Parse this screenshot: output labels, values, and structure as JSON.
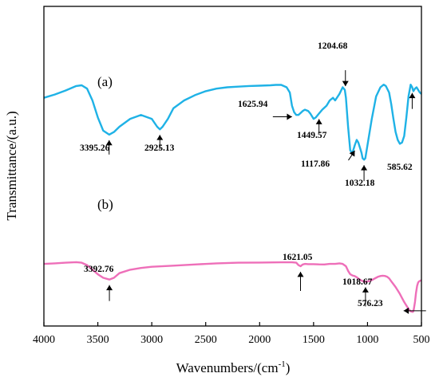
{
  "chart_data": {
    "type": "line",
    "xlabel": "Wavenumbers/(cm-1)",
    "xlabel_main": "Wavenumbers/(cm",
    "xlabel_sup": "-1",
    "xlabel_close": ")",
    "ylabel": "Transmittance/(a.u.)",
    "xlim": [
      4000,
      500
    ],
    "x_reversed": true,
    "y_ticks_shown": false,
    "grid": false,
    "x_ticks": [
      "4000",
      "3500",
      "3000",
      "2500",
      "2000",
      "1500",
      "1000",
      "500"
    ],
    "series": [
      {
        "name": "(a)",
        "color": "#1fb2e6",
        "x": [
          4000,
          3900,
          3800,
          3700,
          3650,
          3600,
          3550,
          3500,
          3450,
          3395,
          3350,
          3300,
          3200,
          3100,
          3000,
          2950,
          2925,
          2900,
          2850,
          2800,
          2700,
          2600,
          2500,
          2400,
          2300,
          2200,
          2100,
          2000,
          1900,
          1850,
          1800,
          1750,
          1720,
          1700,
          1680,
          1660,
          1640,
          1626,
          1600,
          1580,
          1550,
          1530,
          1500,
          1480,
          1450,
          1420,
          1380,
          1350,
          1320,
          1300,
          1260,
          1230,
          1210,
          1200,
          1180,
          1160,
          1140,
          1118,
          1100,
          1085,
          1070,
          1055,
          1045,
          1032,
          1020,
          1000,
          960,
          920,
          880,
          850,
          830,
          800,
          780,
          760,
          740,
          720,
          700,
          680,
          660,
          640,
          620,
          600,
          586,
          575,
          560,
          545,
          530,
          515,
          500
        ],
        "values": [
          0.62,
          0.645,
          0.675,
          0.71,
          0.715,
          0.69,
          0.6,
          0.47,
          0.37,
          0.34,
          0.36,
          0.4,
          0.46,
          0.49,
          0.46,
          0.4,
          0.38,
          0.4,
          0.46,
          0.54,
          0.6,
          0.64,
          0.67,
          0.69,
          0.7,
          0.705,
          0.71,
          0.712,
          0.715,
          0.718,
          0.718,
          0.7,
          0.66,
          0.56,
          0.51,
          0.49,
          0.49,
          0.5,
          0.52,
          0.53,
          0.52,
          0.5,
          0.46,
          0.47,
          0.5,
          0.53,
          0.56,
          0.6,
          0.62,
          0.6,
          0.65,
          0.7,
          0.68,
          0.62,
          0.4,
          0.22,
          0.2,
          0.26,
          0.3,
          0.28,
          0.24,
          0.2,
          0.16,
          0.15,
          0.16,
          0.26,
          0.46,
          0.63,
          0.7,
          0.72,
          0.71,
          0.66,
          0.57,
          0.46,
          0.36,
          0.3,
          0.27,
          0.28,
          0.33,
          0.47,
          0.63,
          0.72,
          0.7,
          0.67,
          0.69,
          0.7,
          0.68,
          0.66,
          0.65
        ],
        "annotations": [
          {
            "label": "3395.26",
            "x": 3395.26
          },
          {
            "label": "2925.13",
            "x": 2925.13
          },
          {
            "label": "1625.94",
            "x": 1625.94
          },
          {
            "label": "1449.57",
            "x": 1449.57
          },
          {
            "label": "1204.68",
            "x": 1204.68
          },
          {
            "label": "1117.86",
            "x": 1117.86
          },
          {
            "label": "1032.18",
            "x": 1032.18
          },
          {
            "label": "585.62",
            "x": 585.62
          }
        ]
      },
      {
        "name": "(b)",
        "color": "#ee6fb9",
        "x": [
          4000,
          3900,
          3800,
          3700,
          3650,
          3600,
          3550,
          3500,
          3450,
          3393,
          3350,
          3300,
          3200,
          3100,
          3000,
          2800,
          2600,
          2400,
          2200,
          2000,
          1800,
          1700,
          1660,
          1640,
          1621,
          1600,
          1580,
          1550,
          1500,
          1450,
          1400,
          1350,
          1300,
          1260,
          1230,
          1200,
          1180,
          1160,
          1140,
          1120,
          1100,
          1080,
          1060,
          1040,
          1019,
          1000,
          980,
          960,
          940,
          920,
          900,
          880,
          860,
          840,
          820,
          800,
          780,
          760,
          740,
          720,
          700,
          680,
          660,
          640,
          620,
          600,
          580,
          576,
          570,
          560,
          550,
          540,
          530,
          520,
          510,
          500
        ],
        "values": [
          0.42,
          0.425,
          0.43,
          0.435,
          0.43,
          0.41,
          0.37,
          0.33,
          0.3,
          0.285,
          0.3,
          0.34,
          0.37,
          0.385,
          0.395,
          0.405,
          0.415,
          0.425,
          0.43,
          0.432,
          0.434,
          0.434,
          0.43,
          0.41,
          0.4,
          0.415,
          0.42,
          0.418,
          0.418,
          0.416,
          0.415,
          0.42,
          0.42,
          0.425,
          0.42,
          0.4,
          0.36,
          0.33,
          0.32,
          0.315,
          0.305,
          0.29,
          0.278,
          0.27,
          0.266,
          0.268,
          0.272,
          0.28,
          0.29,
          0.3,
          0.31,
          0.315,
          0.318,
          0.316,
          0.31,
          0.295,
          0.27,
          0.245,
          0.22,
          0.19,
          0.16,
          0.125,
          0.09,
          0.06,
          0.03,
          0.01,
          0.005,
          0.008,
          0.03,
          0.09,
          0.17,
          0.23,
          0.26,
          0.27,
          0.275,
          0.278
        ],
        "annotations": [
          {
            "label": "3392.76",
            "x": 3392.76
          },
          {
            "label": "1621.05",
            "x": 1621.05
          },
          {
            "label": "1018.67",
            "x": 1018.67
          },
          {
            "label": "576.23",
            "x": 576.23
          }
        ]
      }
    ]
  }
}
